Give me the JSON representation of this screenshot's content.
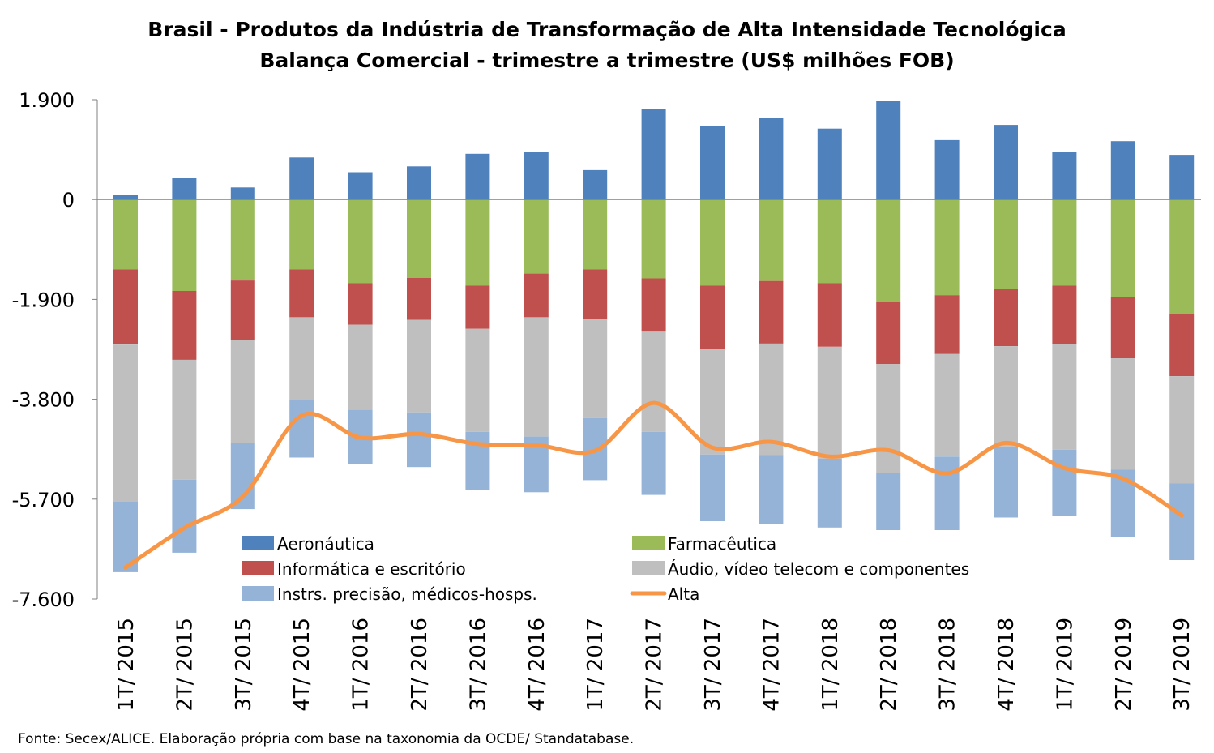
{
  "chart_data": {
    "type": "bar",
    "stacked": true,
    "title": "Brasil - Produtos da Indústria de Transformação de Alta Intensidade Tecnológica",
    "subtitle": "Balança Comercial - trimestre a trimestre (US$ milhões FOB)",
    "source": "Fonte: Secex/ALICE. Elaboração própria com base na taxonomia da OCDE/ Standatabase.",
    "categories": [
      "1T/ 2015",
      "2T/ 2015",
      "3T/ 2015",
      "4T/ 2015",
      "1T/ 2016",
      "2T/ 2016",
      "3T/ 2016",
      "4T/ 2016",
      "1T/ 2017",
      "2T/ 2017",
      "3T/ 2017",
      "4T/ 2017",
      "1T/ 2018",
      "2T/ 2018",
      "3T/ 2018",
      "4T/ 2018",
      "1T/ 2019",
      "2T/ 2019",
      "3T/ 2019"
    ],
    "ylim": [
      -7600,
      1900
    ],
    "yticks": [
      1900,
      0,
      -1900,
      -3800,
      -5700,
      -7600
    ],
    "ytick_labels": [
      "1.900",
      "0",
      "-1.900",
      "-3.800",
      "-5.700",
      "-7.600"
    ],
    "grid": false,
    "legend_position": "bottom-inside",
    "series": [
      {
        "name": "Aeronáutica",
        "kind": "bar",
        "color": "#4f81bd",
        "values": [
          90,
          420,
          230,
          800,
          520,
          630,
          870,
          900,
          560,
          1730,
          1400,
          1560,
          1350,
          1870,
          1130,
          1420,
          910,
          1110,
          850
        ]
      },
      {
        "name": "Farmacêutica",
        "kind": "bar",
        "color": "#9bbb59",
        "values": [
          -1330,
          -1740,
          -1540,
          -1330,
          -1590,
          -1490,
          -1640,
          -1410,
          -1330,
          -1500,
          -1640,
          -1550,
          -1590,
          -1940,
          -1820,
          -1700,
          -1640,
          -1860,
          -2180
        ]
      },
      {
        "name": "Informática e escritório",
        "kind": "bar",
        "color": "#c0504d",
        "values": [
          -1430,
          -1310,
          -1140,
          -910,
          -790,
          -800,
          -820,
          -830,
          -950,
          -1000,
          -1200,
          -1190,
          -1210,
          -1190,
          -1120,
          -1090,
          -1110,
          -1160,
          -1180
        ]
      },
      {
        "name": "Áudio, vídeo telecom e componentes",
        "kind": "bar",
        "color": "#bfbfbf",
        "values": [
          -2990,
          -2280,
          -1950,
          -1570,
          -1620,
          -1760,
          -1960,
          -2270,
          -1880,
          -1920,
          -2010,
          -2120,
          -2130,
          -2070,
          -1950,
          -1910,
          -2010,
          -2120,
          -2040
        ]
      },
      {
        "name": "Instrs. precisão, médicos-hosps.",
        "kind": "bar",
        "color": "#95b3d7",
        "values": [
          -1340,
          -1390,
          -1260,
          -1100,
          -1040,
          -1040,
          -1100,
          -1060,
          -1180,
          -1200,
          -1270,
          -1310,
          -1310,
          -1500,
          -1460,
          -1350,
          -1260,
          -1280,
          -1460
        ]
      },
      {
        "name": "Alta",
        "kind": "line",
        "color": "#f79646",
        "values": [
          -7000,
          -6250,
          -5650,
          -4110,
          -4530,
          -4460,
          -4650,
          -4670,
          -4780,
          -3870,
          -4720,
          -4610,
          -4890,
          -4770,
          -5210,
          -4630,
          -5110,
          -5310,
          -6010
        ]
      }
    ]
  }
}
